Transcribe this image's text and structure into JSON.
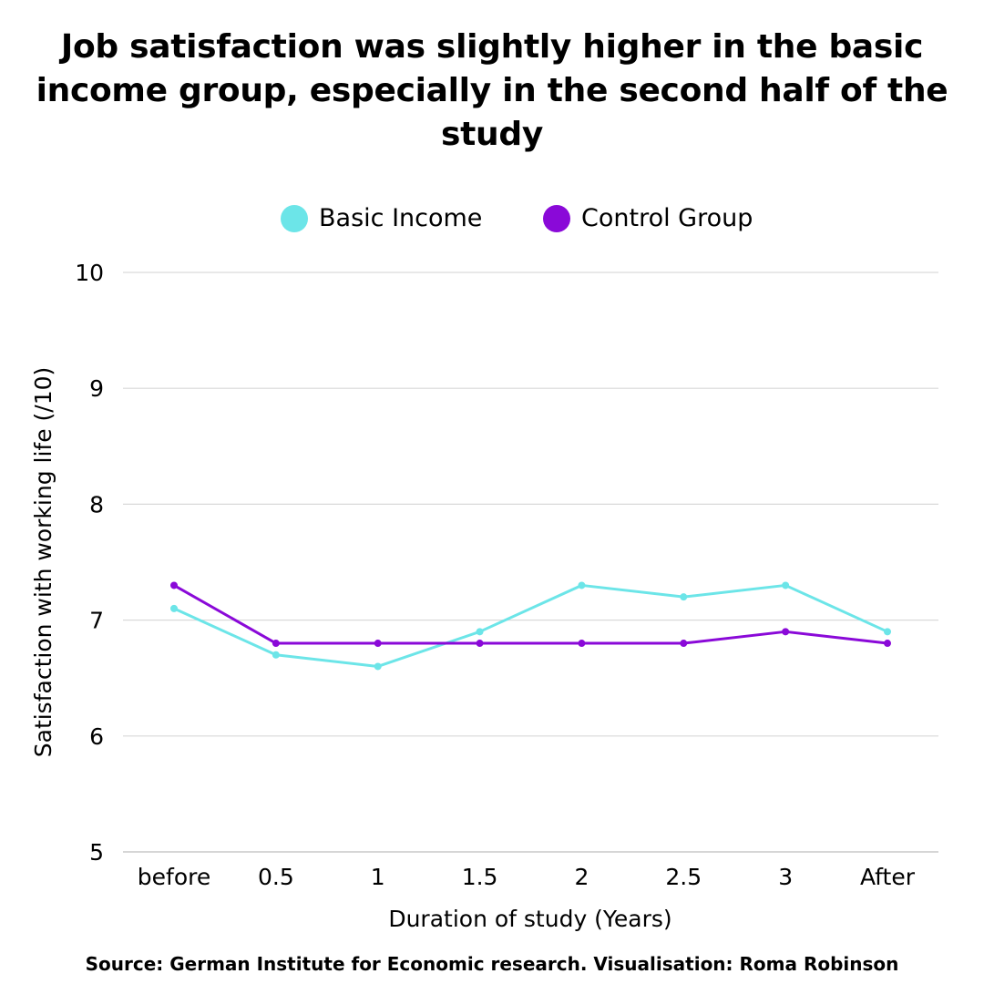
{
  "chart_data": {
    "type": "line",
    "title": "Job satisfaction was slightly higher in the basic income group, especially in the second half of the study",
    "xlabel": "Duration of study (Years)",
    "ylabel": "Satisfaction with working life (/10)",
    "categories": [
      "before",
      "0.5",
      "1",
      "1.5",
      "2",
      "2.5",
      "3",
      "After"
    ],
    "ylim": [
      5,
      10
    ],
    "yticks": [
      5,
      6,
      7,
      8,
      9,
      10
    ],
    "grid": true,
    "legend_position": "top-center",
    "series": [
      {
        "name": "Basic Income",
        "color": "#6ce5e8",
        "values": [
          7.1,
          6.7,
          6.6,
          6.9,
          7.3,
          7.2,
          7.3,
          6.9
        ]
      },
      {
        "name": "Control Group",
        "color": "#8a09d8",
        "values": [
          7.3,
          6.8,
          6.8,
          6.8,
          6.8,
          6.8,
          6.9,
          6.8
        ]
      }
    ]
  },
  "source": "Source: German Institute for Economic research. Visualisation: Roma Robinson"
}
